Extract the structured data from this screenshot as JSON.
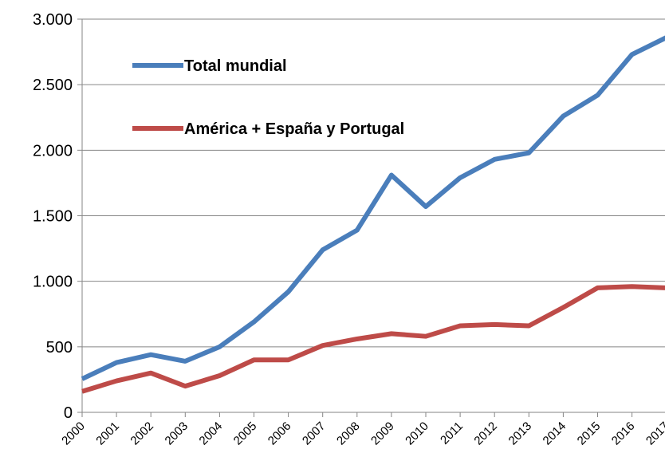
{
  "chart_data": {
    "type": "line",
    "categories": [
      "2000",
      "2001",
      "2002",
      "2003",
      "2004",
      "2005",
      "2006",
      "2007",
      "2008",
      "2009",
      "2010",
      "2011",
      "2012",
      "2013",
      "2014",
      "2015",
      "2016",
      "2017"
    ],
    "series": [
      {
        "name": "Total mundial",
        "color": "#4a7ebb",
        "values": [
          255,
          380,
          440,
          390,
          500,
          690,
          920,
          1240,
          1390,
          1810,
          1570,
          1790,
          1930,
          1980,
          2260,
          2420,
          2730,
          2860
        ]
      },
      {
        "name": "América + España y Portugal",
        "color": "#be4b48",
        "values": [
          160,
          240,
          300,
          200,
          280,
          400,
          400,
          510,
          560,
          600,
          580,
          660,
          670,
          660,
          800,
          950,
          960,
          950
        ]
      }
    ],
    "ylim": [
      0,
      3000
    ],
    "yticks": [
      0,
      500,
      {
        "value": 1000,
        "label": "1.000"
      },
      {
        "value": 1500,
        "label": "1.500"
      },
      {
        "value": 2000,
        "label": "2.000"
      },
      {
        "value": 2500,
        "label": "2.500"
      },
      {
        "value": 3000,
        "label": "3.000"
      }
    ],
    "grid": true
  }
}
